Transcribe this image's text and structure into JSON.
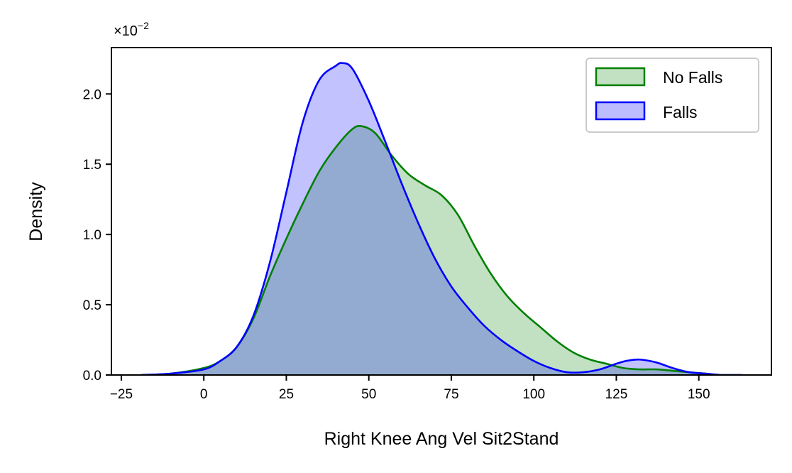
{
  "chart_data": {
    "type": "area",
    "xlabel": "Right Knee Ang Vel Sit2Stand",
    "ylabel": "Density",
    "xlim": [
      -28,
      172
    ],
    "ylim": [
      0,
      2.33
    ],
    "xticks": [
      -25,
      0,
      25,
      50,
      75,
      100,
      125,
      150
    ],
    "xtick_labels": [
      "−25",
      "0",
      "25",
      "50",
      "75",
      "100",
      "125",
      "150"
    ],
    "yticks": [
      0,
      0.5,
      1.0,
      1.5,
      2.0
    ],
    "ytick_labels": [
      "0.0",
      "0.5",
      "1.0",
      "1.5",
      "2.0"
    ],
    "y_offset_text": "×10",
    "y_offset_exponent": "−2",
    "grid": false,
    "legend_position": "top-right",
    "series": [
      {
        "name": "No Falls",
        "color": "#008000",
        "fill": "#c2e0c2",
        "x": [
          -19,
          -10,
          0,
          5,
          10,
          15,
          20,
          25,
          30,
          35,
          40,
          45,
          48,
          52,
          57,
          62,
          67,
          72,
          77,
          82,
          87,
          92,
          97,
          102,
          107,
          112,
          117,
          122,
          127,
          132,
          137,
          142,
          147,
          152,
          157,
          163
        ],
        "y": [
          0.0,
          0.01,
          0.05,
          0.1,
          0.2,
          0.4,
          0.7,
          0.97,
          1.22,
          1.45,
          1.62,
          1.75,
          1.77,
          1.72,
          1.56,
          1.43,
          1.35,
          1.28,
          1.14,
          0.92,
          0.72,
          0.56,
          0.44,
          0.34,
          0.24,
          0.16,
          0.11,
          0.08,
          0.05,
          0.04,
          0.04,
          0.03,
          0.02,
          0.01,
          0.0,
          0.0
        ]
      },
      {
        "name": "Falls",
        "color": "#0000ff",
        "fill": "#bcbcff",
        "x": [
          -19,
          -10,
          0,
          5,
          10,
          15,
          20,
          25,
          30,
          35,
          40,
          42,
          45,
          50,
          55,
          60,
          65,
          70,
          75,
          80,
          85,
          90,
          95,
          100,
          105,
          110,
          115,
          120,
          125,
          128,
          132,
          137,
          142,
          147,
          152,
          157,
          163
        ],
        "y": [
          0.0,
          0.01,
          0.04,
          0.1,
          0.2,
          0.42,
          0.8,
          1.3,
          1.8,
          2.1,
          2.2,
          2.22,
          2.18,
          1.95,
          1.66,
          1.36,
          1.08,
          0.83,
          0.63,
          0.48,
          0.35,
          0.25,
          0.17,
          0.1,
          0.05,
          0.02,
          0.02,
          0.04,
          0.08,
          0.1,
          0.11,
          0.09,
          0.05,
          0.02,
          0.01,
          0.0,
          0.0
        ]
      }
    ]
  }
}
